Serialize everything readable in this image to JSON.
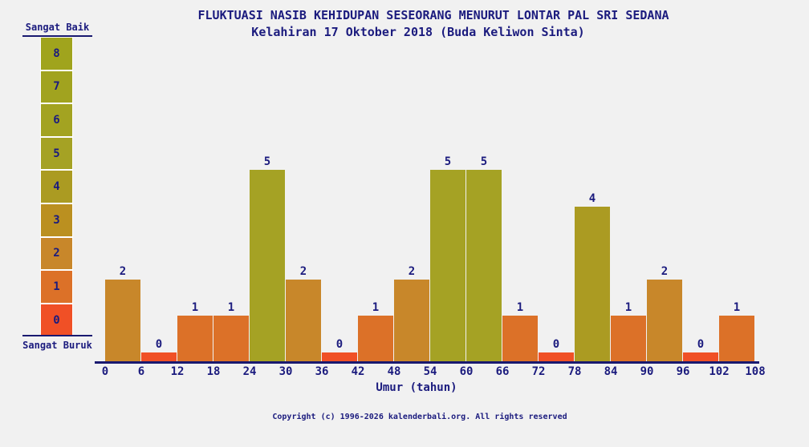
{
  "header": {
    "title": "FLUKTUASI NASIB KEHIDUPAN SESEORANG MENURUT LONTAR PAL SRI SEDANA",
    "subtitle": "Kelahiran 17 Oktober 2018 (Buda Keliwon Sinta)"
  },
  "legend": {
    "top_label": "Sangat Baik",
    "bottom_label": "Sangat Buruk",
    "levels": [
      8,
      7,
      6,
      5,
      4,
      3,
      2,
      1,
      0
    ]
  },
  "chart_data": {
    "type": "bar",
    "title": "FLUKTUASI NASIB KEHIDUPAN SESEORANG MENURUT LONTAR PAL SRI SEDANA",
    "subtitle": "Kelahiran 17 Oktober 2018 (Buda Keliwon Sinta)",
    "xlabel": "Umur (tahun)",
    "ylabel": "",
    "x_ticks": [
      0,
      6,
      12,
      18,
      24,
      30,
      36,
      42,
      48,
      54,
      60,
      66,
      72,
      78,
      84,
      90,
      96,
      102,
      108
    ],
    "bin_width_years": 6,
    "categories": [
      "0-6",
      "6-12",
      "12-18",
      "18-24",
      "24-30",
      "30-36",
      "36-42",
      "42-48",
      "48-54",
      "54-60",
      "60-66",
      "66-72",
      "72-78",
      "78-84",
      "84-90",
      "90-96",
      "96-102",
      "102-108"
    ],
    "values": [
      2,
      0,
      1,
      1,
      5,
      2,
      0,
      1,
      2,
      5,
      5,
      1,
      0,
      4,
      1,
      2,
      0,
      1
    ],
    "ylim": [
      0,
      8
    ],
    "grid": false,
    "legend_position": "left",
    "scale_max_label": "Sangat Baik",
    "scale_min_label": "Sangat Buruk",
    "value_colors": {
      "0": "#f05026",
      "1": "#dc7128",
      "2": "#c8872a",
      "3": "#bb9020",
      "4": "#ab9b22",
      "5": "#a5a224",
      "6": "#a3a321",
      "7": "#a1a31f",
      "8": "#a0a41d"
    }
  },
  "footer": {
    "copyright": "Copyright (c) 1996-2026 kalenderbali.org. All rights reserved"
  },
  "colors": {
    "background": "#f1f1f1",
    "text": "#1b1b7e",
    "axis": "#191970"
  }
}
